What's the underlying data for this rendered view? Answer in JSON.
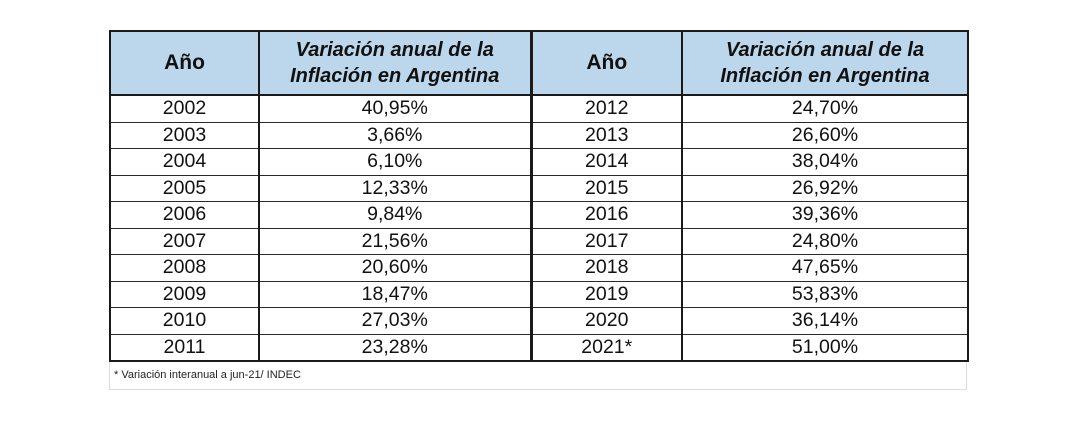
{
  "table": {
    "headers": {
      "year_left": "Año",
      "value_left": "Variación anual de la Inflación en Argentina",
      "year_right": "Año",
      "value_right": "Variación anual de la Inflación en Argentina"
    },
    "rows": [
      {
        "year_left": "2002",
        "value_left": "40,95%",
        "year_right": "2012",
        "value_right": "24,70%"
      },
      {
        "year_left": "2003",
        "value_left": "3,66%",
        "year_right": "2013",
        "value_right": "26,60%"
      },
      {
        "year_left": "2004",
        "value_left": "6,10%",
        "year_right": "2014",
        "value_right": "38,04%"
      },
      {
        "year_left": "2005",
        "value_left": "12,33%",
        "year_right": "2015",
        "value_right": "26,92%"
      },
      {
        "year_left": "2006",
        "value_left": "9,84%",
        "year_right": "2016",
        "value_right": "39,36%"
      },
      {
        "year_left": "2007",
        "value_left": "21,56%",
        "year_right": "2017",
        "value_right": "24,80%"
      },
      {
        "year_left": "2008",
        "value_left": "20,60%",
        "year_right": "2018",
        "value_right": "47,65%"
      },
      {
        "year_left": "2009",
        "value_left": "18,47%",
        "year_right": "2019",
        "value_right": "53,83%"
      },
      {
        "year_left": "2010",
        "value_left": "27,03%",
        "year_right": "2020",
        "value_right": "36,14%"
      },
      {
        "year_left": "2011",
        "value_left": "23,28%",
        "year_right": "2021*",
        "value_right": "51,00%"
      }
    ],
    "footnote": "* Variación interanual a jun-21/ INDEC"
  },
  "colors": {
    "header_background": "#bcd7ec",
    "border": "#1a1a1a"
  }
}
